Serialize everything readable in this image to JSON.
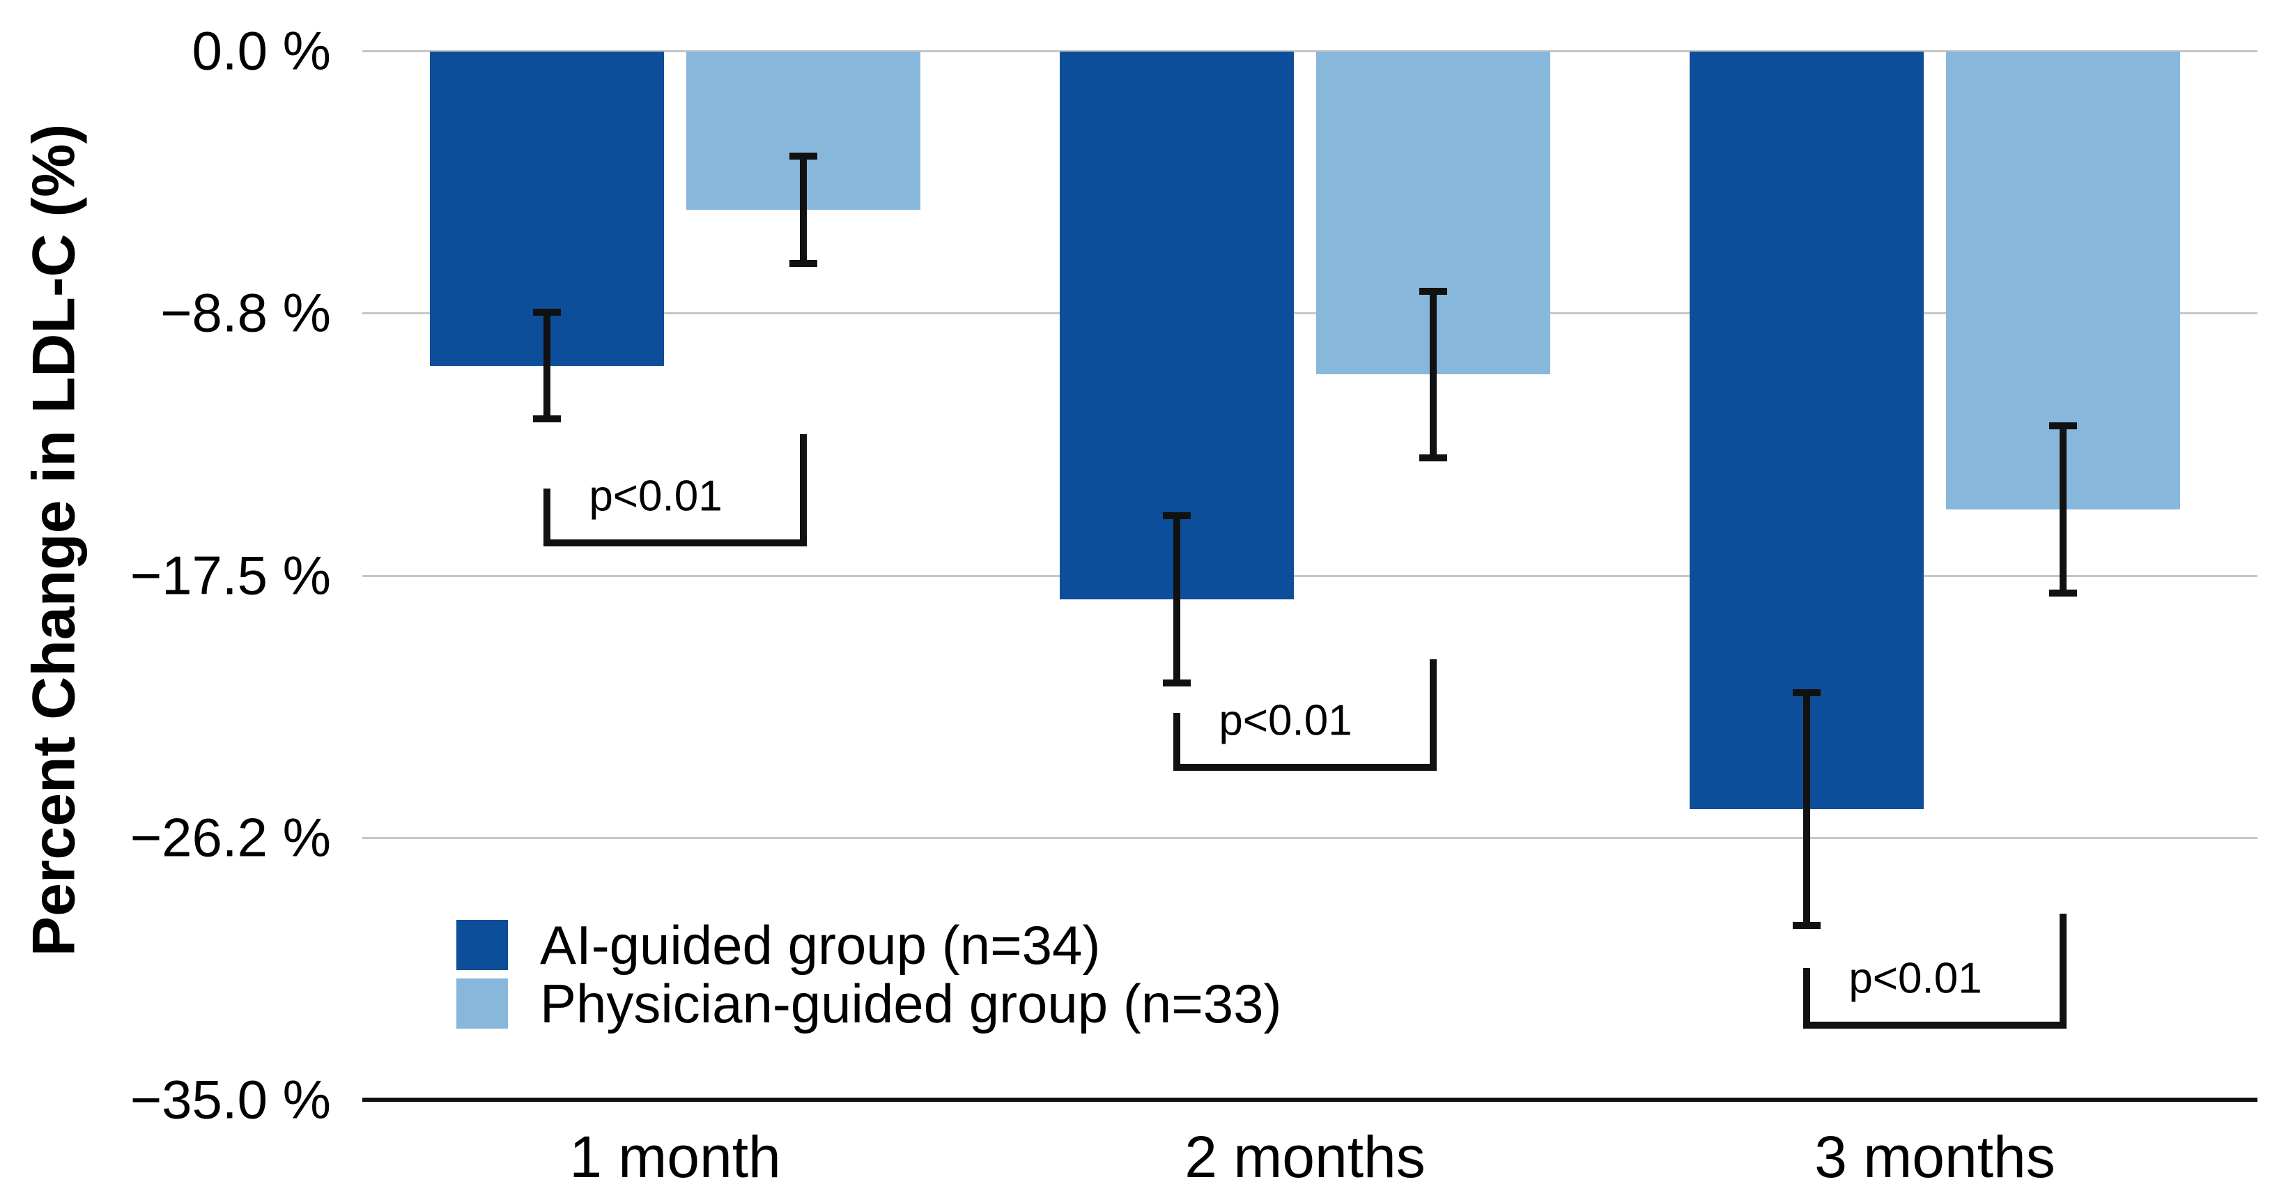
{
  "chart_data": {
    "type": "bar",
    "title": "",
    "ylabel": "Percent Change in LDL-C (%)",
    "xlabel": "",
    "categories": [
      "1 month",
      "2 months",
      "3 months"
    ],
    "series": [
      {
        "name": "AI-guided group (n=34)",
        "color": "#0d4e9b",
        "values": [
          -10.5,
          -18.3,
          -25.3
        ],
        "errors": [
          1.9,
          2.9,
          4.0
        ]
      },
      {
        "name": "Physician-guided group (n=33)",
        "color": "#88b7dc",
        "values": [
          -5.3,
          -10.8,
          -15.3
        ],
        "errors": [
          1.9,
          2.9,
          2.9
        ]
      }
    ],
    "y_ticks": [
      {
        "value": 0,
        "label": "0.0 %"
      },
      {
        "value": -8.75,
        "label": "−8.8 %"
      },
      {
        "value": -17.5,
        "label": "−17.5 %"
      },
      {
        "value": -26.25,
        "label": "−26.2 %"
      },
      {
        "value": -35,
        "label": "−35.0 %"
      }
    ],
    "ylim": [
      -35,
      0
    ],
    "grid": true,
    "error_bar_color": "#111111",
    "legend_position": "inside-lower-left",
    "annotations": [
      {
        "label": "p<0.01",
        "group": 0,
        "bar_y": -16.3,
        "left_tick_top": -14.6,
        "right_tick_top": -12.8
      },
      {
        "label": "p<0.01",
        "group": 1,
        "bar_y": -23.8,
        "left_tick_top": -22.1,
        "right_tick_top": -20.3
      },
      {
        "label": "p<0.01",
        "group": 2,
        "bar_y": -32.4,
        "left_tick_top": -30.6,
        "right_tick_top": -28.8
      }
    ]
  }
}
